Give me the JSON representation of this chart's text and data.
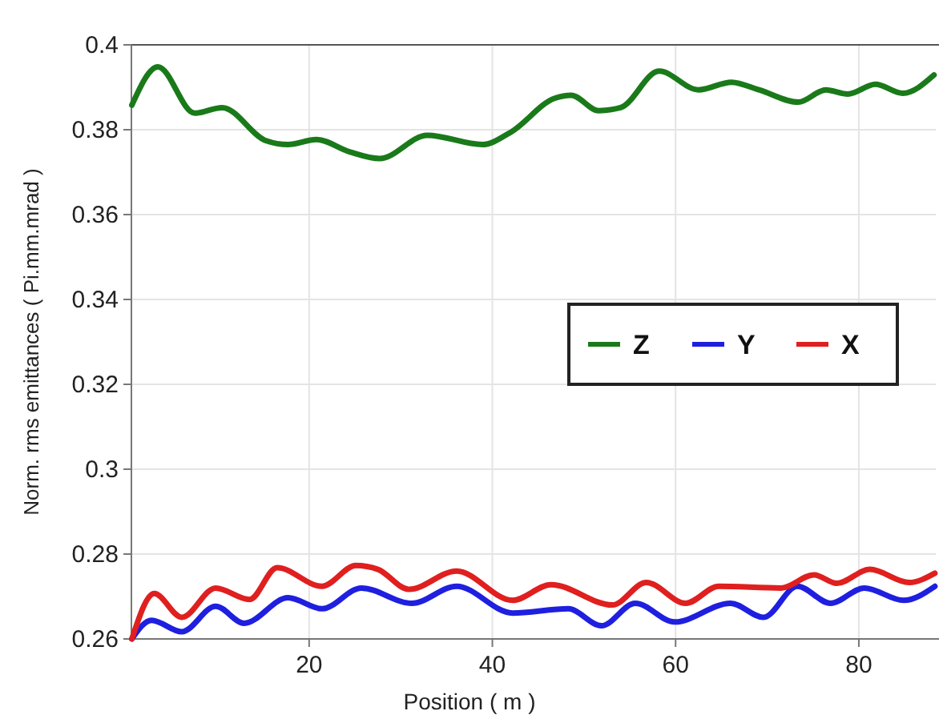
{
  "chart_data": {
    "type": "line",
    "xlabel": "Position ( m )",
    "ylabel": "Norm. rms emittances ( Pi.mm.mrad )",
    "xlim": [
      0.6,
      88.4
    ],
    "xticks": [
      20,
      40,
      60,
      80
    ],
    "ylim": [
      0.26,
      0.4
    ],
    "yticks": [
      0.26,
      0.28,
      0.3,
      0.32,
      0.34,
      0.36,
      0.38,
      0.4
    ],
    "grid": true,
    "legend": "right",
    "line_style": "solid",
    "series": [
      {
        "name": "Z",
        "color": "#1a7a1a",
        "x": [
          0.65,
          3.5,
          7.5,
          10.5,
          15.3,
          17.7,
          20.8,
          24.4,
          27.7,
          32.9,
          38.9,
          42,
          46.8,
          48.6,
          51.6,
          54,
          58.2,
          62.5,
          66.1,
          69.1,
          73.4,
          76.4,
          78.8,
          81.8,
          84.8,
          88.2
        ],
        "values": [
          0.3858,
          0.3948,
          0.3839,
          0.3852,
          0.3774,
          0.3765,
          0.3777,
          0.3748,
          0.3732,
          0.3787,
          0.3765,
          0.3794,
          0.3874,
          0.3881,
          0.3845,
          0.3852,
          0.3938,
          0.3894,
          0.3912,
          0.3894,
          0.3865,
          0.3894,
          0.3884,
          0.3907,
          0.3886,
          0.3929
        ]
      },
      {
        "name": "Y",
        "color": "#1f1fe0",
        "x": [
          0.65,
          2.8,
          6.1,
          9.8,
          12.9,
          17.7,
          21.4,
          25.7,
          31.2,
          36.1,
          42.2,
          48.3,
          51.9,
          55.6,
          59.9,
          66,
          69.6,
          73.3,
          76.9,
          80.6,
          84.9,
          88.3
        ],
        "values": [
          0.26,
          0.2644,
          0.2617,
          0.2677,
          0.2637,
          0.2697,
          0.2671,
          0.272,
          0.2684,
          0.2724,
          0.2661,
          0.2671,
          0.2631,
          0.2684,
          0.264,
          0.2684,
          0.2651,
          0.2724,
          0.2684,
          0.272,
          0.2691,
          0.2724
        ]
      },
      {
        "name": "X",
        "color": "#e01f1f",
        "x": [
          0.65,
          3.1,
          6.1,
          9.8,
          13.5,
          16.5,
          21.4,
          25.1,
          27.5,
          30.9,
          36.1,
          42.2,
          46.4,
          53.1,
          56.8,
          61.1,
          64.7,
          71.5,
          75.1,
          77.6,
          81.2,
          85.5,
          88.3
        ],
        "values": [
          0.26,
          0.2707,
          0.2651,
          0.272,
          0.2693,
          0.2768,
          0.2724,
          0.2773,
          0.2764,
          0.2717,
          0.276,
          0.2691,
          0.2728,
          0.268,
          0.2733,
          0.2684,
          0.2724,
          0.272,
          0.2751,
          0.2731,
          0.2764,
          0.2733,
          0.2755
        ]
      }
    ]
  }
}
